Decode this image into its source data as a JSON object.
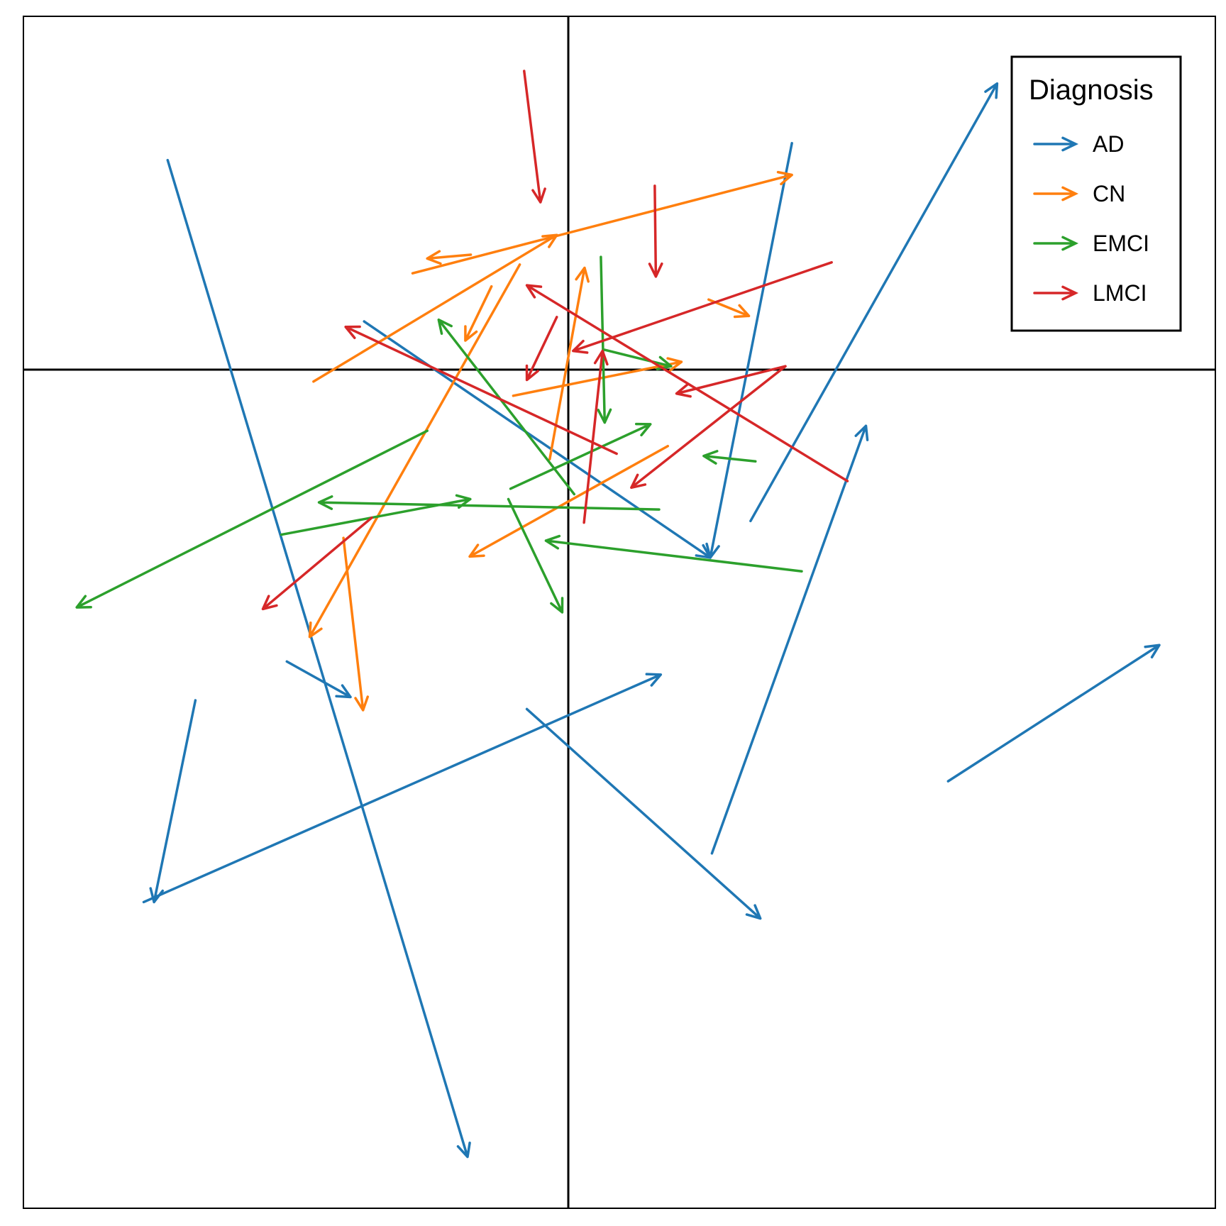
{
  "chart_data": {
    "type": "vector_plot",
    "axes_shown": false,
    "reference_lines": {
      "x": 0,
      "y": 0
    },
    "xlim": [
      -1.0,
      1.19
    ],
    "ylim": [
      -1.53,
      0.65
    ],
    "legend": {
      "title": "Diagnosis",
      "position": "top-right"
    },
    "series": [
      {
        "name": "AD",
        "color": "#1f77b4",
        "arrows": [
          {
            "x0": -0.735,
            "y0": 0.387,
            "x1": -0.184,
            "y1": -1.436
          },
          {
            "x0": -0.374,
            "y0": 0.092,
            "x1": 0.262,
            "y1": -0.34
          },
          {
            "x0": 0.412,
            "y0": 0.418,
            "x1": 0.262,
            "y1": -0.34
          },
          {
            "x0": 0.336,
            "y0": -0.273,
            "x1": 0.789,
            "y1": 0.527
          },
          {
            "x0": -0.516,
            "y0": -0.53,
            "x1": -0.399,
            "y1": -0.595
          },
          {
            "x0": -0.684,
            "y0": -0.601,
            "x1": -0.76,
            "y1": -0.97
          },
          {
            "x0": -0.779,
            "y0": -0.97,
            "x1": 0.171,
            "y1": -0.554
          },
          {
            "x0": -0.075,
            "y0": -0.617,
            "x1": 0.354,
            "y1": -1.0
          },
          {
            "x0": 0.265,
            "y0": -0.881,
            "x1": 0.548,
            "y1": -0.099
          },
          {
            "x0": 0.699,
            "y0": -0.749,
            "x1": 1.087,
            "y1": -0.5
          }
        ]
      },
      {
        "name": "CN",
        "color": "#ff7f0e",
        "arrows": [
          {
            "x0": -0.285,
            "y0": 0.18,
            "x1": 0.412,
            "y1": 0.36
          },
          {
            "x0": -0.178,
            "y0": 0.214,
            "x1": -0.258,
            "y1": 0.207
          },
          {
            "x0": -0.467,
            "y0": -0.018,
            "x1": -0.02,
            "y1": 0.25
          },
          {
            "x0": -0.14,
            "y0": 0.156,
            "x1": -0.188,
            "y1": 0.057
          },
          {
            "x0": -0.088,
            "y0": 0.196,
            "x1": -0.474,
            "y1": -0.485
          },
          {
            "x0": -0.033,
            "y0": -0.16,
            "x1": 0.031,
            "y1": 0.19
          },
          {
            "x0": 0.259,
            "y0": 0.132,
            "x1": 0.333,
            "y1": 0.102
          },
          {
            "x0": -0.1,
            "y0": -0.044,
            "x1": 0.209,
            "y1": 0.018
          },
          {
            "x0": 0.184,
            "y0": -0.136,
            "x1": -0.18,
            "y1": -0.338
          },
          {
            "x0": -0.412,
            "y0": -0.304,
            "x1": -0.376,
            "y1": -0.619
          }
        ]
      },
      {
        "name": "EMCI",
        "color": "#2ca02c",
        "arrows": [
          {
            "x0": 0.061,
            "y0": 0.21,
            "x1": 0.068,
            "y1": -0.093
          },
          {
            "x0": 0.068,
            "y0": 0.04,
            "x1": 0.19,
            "y1": 0.01
          },
          {
            "x0": -0.105,
            "y0": -0.214,
            "x1": 0.152,
            "y1": -0.096
          },
          {
            "x0": 0.012,
            "y0": -0.224,
            "x1": -0.237,
            "y1": 0.095
          },
          {
            "x0": -0.258,
            "y0": -0.108,
            "x1": -0.902,
            "y1": -0.431
          },
          {
            "x0": -0.526,
            "y0": -0.298,
            "x1": -0.179,
            "y1": -0.233
          },
          {
            "x0": 0.168,
            "y0": -0.252,
            "x1": -0.457,
            "y1": -0.239
          },
          {
            "x0": 0.345,
            "y0": -0.164,
            "x1": 0.25,
            "y1": -0.154
          },
          {
            "x0": 0.43,
            "y0": -0.365,
            "x1": -0.04,
            "y1": -0.309
          },
          {
            "x0": -0.109,
            "y0": -0.233,
            "x1": -0.01,
            "y1": -0.44
          }
        ]
      },
      {
        "name": "LMCI",
        "color": "#d62728",
        "arrows": [
          {
            "x0": -0.08,
            "y0": 0.55,
            "x1": -0.05,
            "y1": 0.31
          },
          {
            "x0": 0.16,
            "y0": 0.34,
            "x1": 0.162,
            "y1": 0.174
          },
          {
            "x0": 0.485,
            "y0": 0.2,
            "x1": 0.01,
            "y1": 0.038
          },
          {
            "x0": 0.514,
            "y0": -0.2,
            "x1": -0.075,
            "y1": 0.158
          },
          {
            "x0": 0.09,
            "y0": -0.15,
            "x1": -0.408,
            "y1": 0.082
          },
          {
            "x0": -0.02,
            "y0": 0.1,
            "x1": -0.075,
            "y1": -0.015
          },
          {
            "x0": 0.4,
            "y0": 0.01,
            "x1": 0.2,
            "y1": -0.04
          },
          {
            "x0": 0.4,
            "y0": 0.01,
            "x1": 0.117,
            "y1": -0.212
          },
          {
            "x0": 0.03,
            "y0": -0.276,
            "x1": 0.064,
            "y1": 0.038
          },
          {
            "x0": -0.36,
            "y0": -0.267,
            "x1": -0.56,
            "y1": -0.434
          }
        ]
      }
    ]
  }
}
